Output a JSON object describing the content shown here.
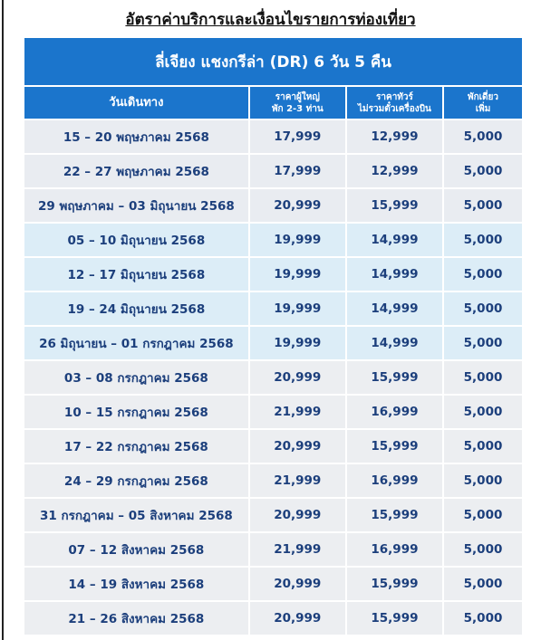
{
  "header": {
    "title": "อัตราค่าบริการและเงื่อนไขรายการท่องเที่ยว"
  },
  "table": {
    "banner": "ลี่เจียง แชงกรีล่า (DR) 6 วัน 5 คืน",
    "columns": [
      [
        "วันเดินทาง"
      ],
      [
        "ราคาผู้ใหญ่",
        "พัก 2-3 ท่าน"
      ],
      [
        "ราคาทัวร์",
        "ไม่รวมตั๋วเครื่องบิน"
      ],
      [
        "พักเดี่ยว",
        "เพิ่ม"
      ]
    ],
    "rows": [
      [
        "15 – 20 พฤษภาคม 2568",
        "17,999",
        "12,999",
        "5,000"
      ],
      [
        "22 – 27 พฤษภาคม 2568",
        "17,999",
        "12,999",
        "5,000"
      ],
      [
        "29 พฤษภาคม – 03 มิถุนายน 2568",
        "20,999",
        "15,999",
        "5,000"
      ],
      [
        "05 – 10 มิถุนายน 2568",
        "19,999",
        "14,999",
        "5,000"
      ],
      [
        "12 – 17 มิถุนายน 2568",
        "19,999",
        "14,999",
        "5,000"
      ],
      [
        "19 – 24 มิถุนายน 2568",
        "19,999",
        "14,999",
        "5,000"
      ],
      [
        "26 มิถุนายน – 01 กรกฎาคม 2568",
        "19,999",
        "14,999",
        "5,000"
      ],
      [
        "03 – 08 กรกฎาคม 2568",
        "20,999",
        "15,999",
        "5,000"
      ],
      [
        "10 – 15 กรกฎาคม 2568",
        "21,999",
        "16,999",
        "5,000"
      ],
      [
        "17 – 22 กรกฎาคม 2568",
        "20,999",
        "15,999",
        "5,000"
      ],
      [
        "24 – 29 กรกฎาคม 2568",
        "21,999",
        "16,999",
        "5,000"
      ],
      [
        "31 กรกฎาคม – 05 สิงหาคม 2568",
        "20,999",
        "15,999",
        "5,000"
      ],
      [
        "07 – 12 สิงหาคม 2568",
        "21,999",
        "16,999",
        "5,000"
      ],
      [
        "14 – 19 สิงหาคม 2568",
        "20,999",
        "15,999",
        "5,000"
      ],
      [
        "21 – 26 สิงหาคม 2568",
        "20,999",
        "15,999",
        "5,000"
      ]
    ]
  }
}
